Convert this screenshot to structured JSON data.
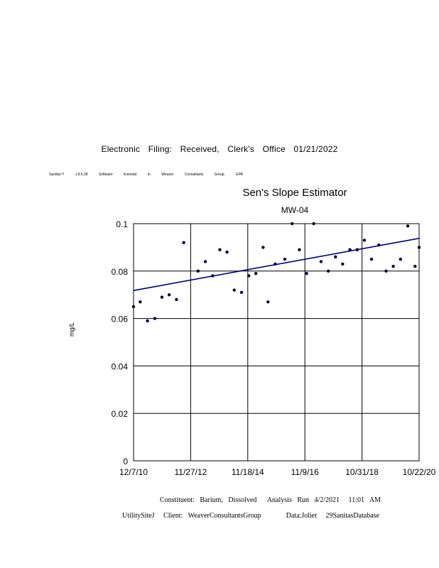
{
  "header": {
    "filing_notice": "Electronic Filing: Received, Clerk's Office 01/21/2022",
    "license": "Sanitas™ v.9.6.28 Software licensed to Weaver Consultants Group. EPA"
  },
  "footer": {
    "line1": "Constituent:   Barium,   Dissolved      Analysis   Run   4/2/2021     11:01   AM",
    "line2": "UtilitySiteJ     Client:   WeaverConsultantsGroup              Data:Joliet     29SanitasDatabase"
  },
  "chart_data": {
    "type": "scatter",
    "title": "Sen's Slope Estimator",
    "subtitle": "MW-04",
    "ylabel": "mg/L",
    "xlabel": "",
    "ylim": [
      0,
      0.1
    ],
    "xlim": [
      "2010-12-07",
      "2020-10-22"
    ],
    "grid": true,
    "y_ticks": [
      "0",
      "0.02",
      "0.04",
      "0.06",
      "0.08",
      "0.1"
    ],
    "x_ticks": [
      "12/7/10",
      "11/27/12",
      "11/18/14",
      "11/9/16",
      "10/31/18",
      "10/22/20"
    ],
    "colors": {
      "points": "#000033",
      "trend": "#000080",
      "grid": "#000000"
    },
    "series": [
      {
        "points": [
          [
            "2010-12-07",
            0.065
          ],
          [
            "2011-03-01",
            0.067
          ],
          [
            "2011-06-01",
            0.059
          ],
          [
            "2011-09-01",
            0.06
          ],
          [
            "2011-12-01",
            0.069
          ],
          [
            "2012-03-01",
            0.07
          ],
          [
            "2012-06-01",
            0.068
          ],
          [
            "2012-09-01",
            0.092
          ],
          [
            "2013-03-01",
            0.08
          ],
          [
            "2013-06-01",
            0.084
          ],
          [
            "2013-09-01",
            0.078
          ],
          [
            "2013-12-01",
            0.089
          ],
          [
            "2014-03-01",
            0.088
          ],
          [
            "2014-06-01",
            0.072
          ],
          [
            "2014-09-01",
            0.071
          ],
          [
            "2014-12-01",
            0.078
          ],
          [
            "2015-03-01",
            0.079
          ],
          [
            "2015-06-01",
            0.09
          ],
          [
            "2015-08-01",
            0.067
          ],
          [
            "2015-11-01",
            0.083
          ],
          [
            "2016-03-01",
            0.085
          ],
          [
            "2016-06-01",
            0.1
          ],
          [
            "2016-09-01",
            0.089
          ],
          [
            "2016-12-01",
            0.079
          ],
          [
            "2017-03-01",
            0.1
          ],
          [
            "2017-06-01",
            0.084
          ],
          [
            "2017-09-01",
            0.08
          ],
          [
            "2017-12-01",
            0.086
          ],
          [
            "2018-03-01",
            0.083
          ],
          [
            "2018-06-01",
            0.089
          ],
          [
            "2018-09-01",
            0.089
          ],
          [
            "2018-12-01",
            0.093
          ],
          [
            "2019-03-01",
            0.085
          ],
          [
            "2019-06-01",
            0.091
          ],
          [
            "2019-09-01",
            0.08
          ],
          [
            "2019-12-01",
            0.082
          ],
          [
            "2020-03-01",
            0.085
          ],
          [
            "2020-06-01",
            0.099
          ],
          [
            "2020-09-01",
            0.082
          ],
          [
            "2020-10-22",
            0.09
          ]
        ]
      }
    ],
    "trend_line": {
      "start": [
        "2010-12-07",
        0.0718
      ],
      "end": [
        "2020-10-22",
        0.0938
      ]
    }
  }
}
